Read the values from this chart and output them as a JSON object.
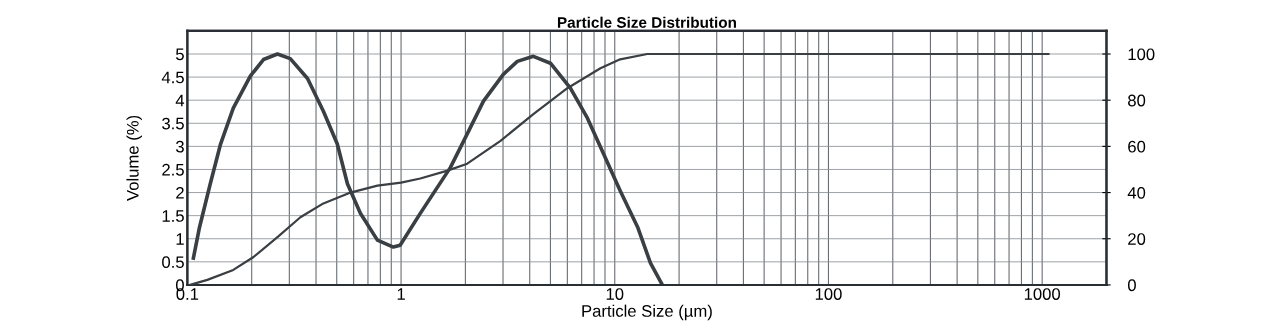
{
  "chart_data": {
    "type": "line",
    "title": "Particle Size Distribution",
    "xlabel": "Particle Size (µm)",
    "ylabel": "Volume (%)",
    "log": "x",
    "grid": true,
    "marker": "none",
    "line_style": "solid",
    "xlim": [
      0.1,
      2000
    ],
    "xticks": [
      0.1,
      1,
      10,
      100,
      1000
    ],
    "ylim": [
      0,
      5.5
    ],
    "yticks": [
      0,
      0.5,
      1,
      1.5,
      2,
      2.5,
      3,
      3.5,
      4,
      4.5,
      5
    ],
    "y2lim": [
      0,
      110
    ],
    "y2ticks": [
      0,
      20,
      40,
      60,
      80,
      100
    ],
    "series": [
      {
        "color": "#3a3f44",
        "x": [
          0.1067,
          0.114,
          0.128,
          0.143,
          0.164,
          0.197,
          0.227,
          0.264,
          0.303,
          0.365,
          0.433,
          0.503,
          0.561,
          0.645,
          0.775,
          0.92,
          0.99,
          1.23,
          1.7,
          2.04,
          2.43,
          3.01,
          3.5,
          4.16,
          5.0,
          6.2,
          7.45,
          8.86,
          10.6,
          12.8,
          14.7,
          16.7
        ],
        "values": [
          0.58,
          1.25,
          2.19,
          3.05,
          3.83,
          4.52,
          4.88,
          5.0,
          4.9,
          4.47,
          3.76,
          3.05,
          2.19,
          1.55,
          0.97,
          0.82,
          0.86,
          1.55,
          2.54,
          3.27,
          3.98,
          4.56,
          4.84,
          4.95,
          4.8,
          4.26,
          3.61,
          2.84,
          2.04,
          1.25,
          0.47,
          0
        ]
      },
      {
        "color": "#3a3f44",
        "axis": "y2",
        "x": [
          0.103,
          0.124,
          0.164,
          0.204,
          0.264,
          0.338,
          0.433,
          0.58,
          0.775,
          1.0,
          1.23,
          1.65,
          2.04,
          2.92,
          4.16,
          6.0,
          8.57,
          10.6,
          14.2,
          1070
        ],
        "values": [
          0,
          2.2,
          6.5,
          12.1,
          20.7,
          29.3,
          35.3,
          40.0,
          43.0,
          44.3,
          46.1,
          49.5,
          52.5,
          62.4,
          74.0,
          85.2,
          93.8,
          97.7,
          100,
          100
        ]
      }
    ]
  }
}
